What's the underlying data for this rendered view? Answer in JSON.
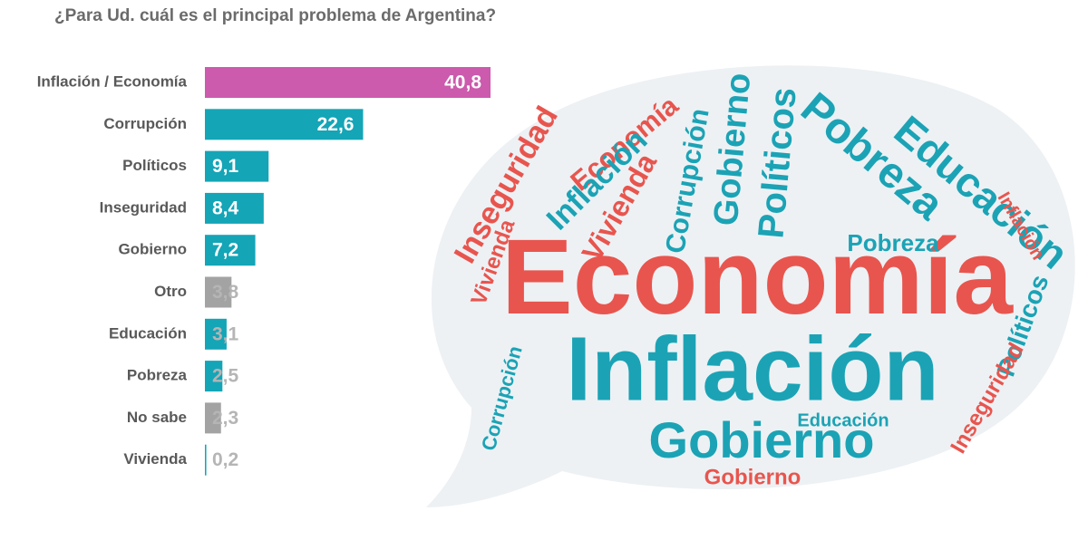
{
  "chart_data": {
    "type": "bar",
    "orientation": "horizontal",
    "title": "¿Para Ud. cuál es el principal problema de Argentina?",
    "categories": [
      "Inflación / Economía",
      "Corrupción",
      "Políticos",
      "Inseguridad",
      "Gobierno",
      "Otro",
      "Educación",
      "Pobreza",
      "No sabe",
      "Vivienda"
    ],
    "values": [
      40.8,
      22.6,
      9.1,
      8.4,
      7.2,
      3.8,
      3.1,
      2.5,
      2.3,
      0.2
    ],
    "value_labels": [
      "40,8",
      "22,6",
      "9,1",
      "8,4",
      "7,2",
      "3,8",
      "3,1",
      "2,5",
      "2,3",
      "0,2"
    ],
    "colors": [
      "#cc5aad",
      "#14a5b7",
      "#14a5b7",
      "#14a5b7",
      "#14a5b7",
      "#a3a3a3",
      "#14a5b7",
      "#14a5b7",
      "#a3a3a3",
      "#14a5b7"
    ]
  },
  "word_cloud": {
    "words": [
      "Economía",
      "Inflación",
      "Gobierno",
      "Pobreza",
      "Educación",
      "Inseguridad",
      "Corrupción",
      "Políticos",
      "Vivienda",
      "Economía",
      "Inflación",
      "Políticos",
      "Gobierno",
      "Vivienda",
      "Pobreza",
      "Educación",
      "Inseguridad",
      "Corrupción",
      "Inflación",
      "Gobierno"
    ]
  }
}
